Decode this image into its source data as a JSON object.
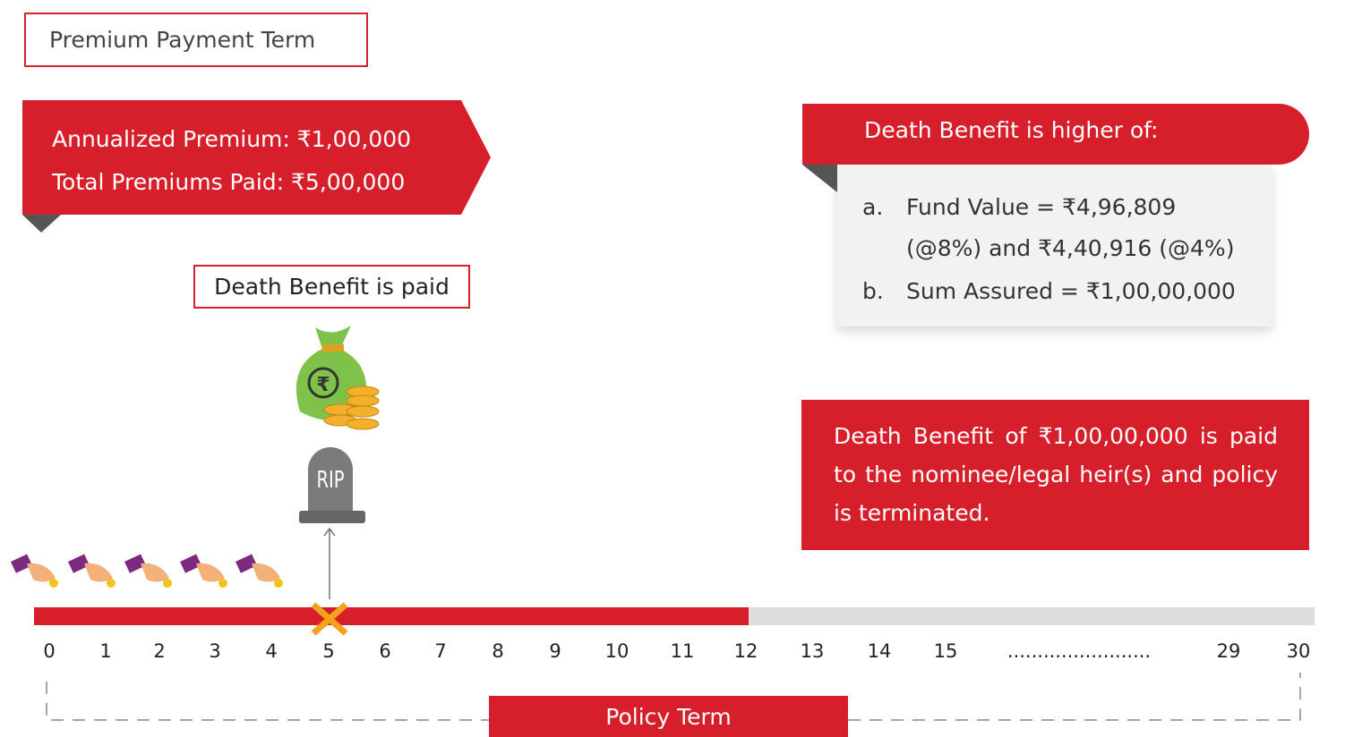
{
  "header": {
    "title": "Premium Payment Term"
  },
  "premium_callout": {
    "lines": [
      "Annualized Premium: ₹1,00,000",
      "Total Premiums Paid: ₹5,00,000"
    ]
  },
  "event": {
    "label": "Death Benefit is paid",
    "tombstone": "RIP"
  },
  "benefit_callout": {
    "title": "Death Benefit is higher of:",
    "items": [
      {
        "marker": "a.",
        "text": "Fund Value = ₹4,96,809 (@8%) and ₹4,40,916 (@4%)"
      },
      {
        "marker": "b.",
        "text": "Sum Assured = ₹1,00,00,000"
      }
    ]
  },
  "result_box": {
    "text": "Death Benefit of ₹1,00,00,000 is paid to the nominee/legal heir(s) and policy is terminated."
  },
  "timeline": {
    "labels": [
      "0",
      "1",
      "2",
      "3",
      "4",
      "5",
      "6",
      "7",
      "8",
      "9",
      "10",
      "11",
      "12",
      "13",
      "14",
      "15",
      "........................",
      "29",
      "30"
    ],
    "footer": "Policy Term"
  }
}
